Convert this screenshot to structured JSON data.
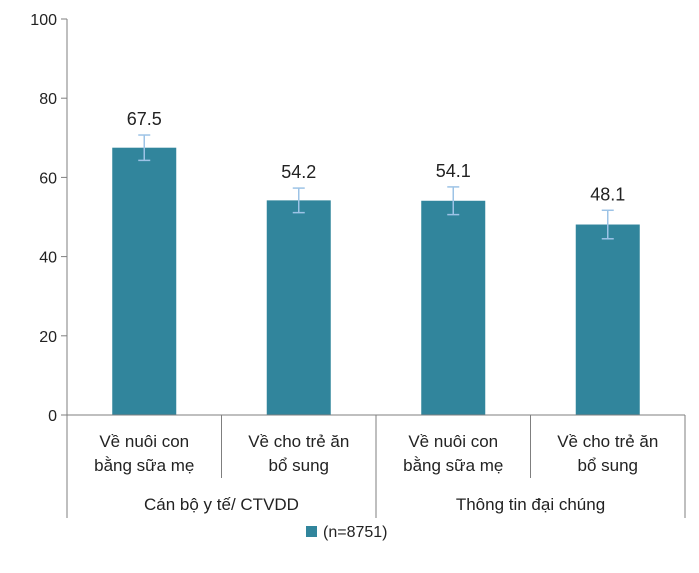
{
  "chart_data": {
    "type": "bar",
    "categories": [
      [
        "Về nuôi con",
        "bằng sữa mẹ"
      ],
      [
        "Về cho trẻ ăn",
        "bổ sung"
      ],
      [
        "Về nuôi con",
        "bằng sữa mẹ"
      ],
      [
        "Về cho trẻ ăn",
        "bổ sung"
      ]
    ],
    "groups": [
      {
        "label": "Cán bộ y tế/ CTVDD",
        "span": [
          0,
          1
        ]
      },
      {
        "label": "Thông tin đại chúng",
        "span": [
          2,
          3
        ]
      }
    ],
    "series": [
      {
        "name": "(n=8751)",
        "values": [
          67.5,
          54.2,
          54.1,
          48.1
        ],
        "value_labels": [
          "67.5",
          "54.2",
          "54.1",
          "48.1"
        ],
        "error_low": [
          64.3,
          51.1,
          50.6,
          44.5
        ],
        "error_high": [
          70.7,
          57.3,
          57.6,
          51.7
        ],
        "color": "#31859C"
      }
    ],
    "yticks": [
      0,
      20,
      40,
      60,
      80,
      100
    ],
    "ylim": [
      0,
      100
    ],
    "error_bar_color": "#9DC3E6",
    "grid": false,
    "legend_position": "bottom"
  }
}
